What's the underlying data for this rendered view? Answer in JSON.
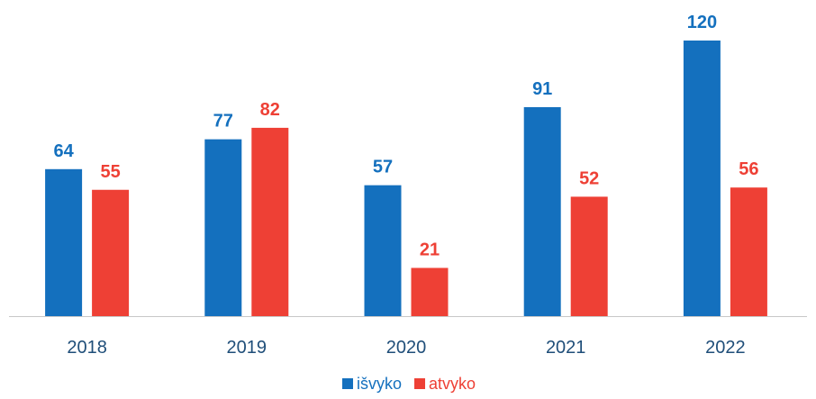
{
  "chart_data": {
    "type": "bar",
    "categories": [
      "2018",
      "2019",
      "2020",
      "2021",
      "2022"
    ],
    "series": [
      {
        "name": "išvyko",
        "values": [
          64,
          77,
          57,
          91,
          120
        ],
        "color": "#1470be"
      },
      {
        "name": "atvyko",
        "values": [
          55,
          82,
          21,
          52,
          56
        ],
        "color": "#ee4035"
      }
    ],
    "title": "",
    "xlabel": "",
    "ylabel": "",
    "ylim": [
      0,
      120
    ],
    "grid": false,
    "legend_position": "bottom-center",
    "data_labels": true,
    "axis_line_color": "#c8c8c8",
    "tick_label_color": "#1f4e79"
  }
}
